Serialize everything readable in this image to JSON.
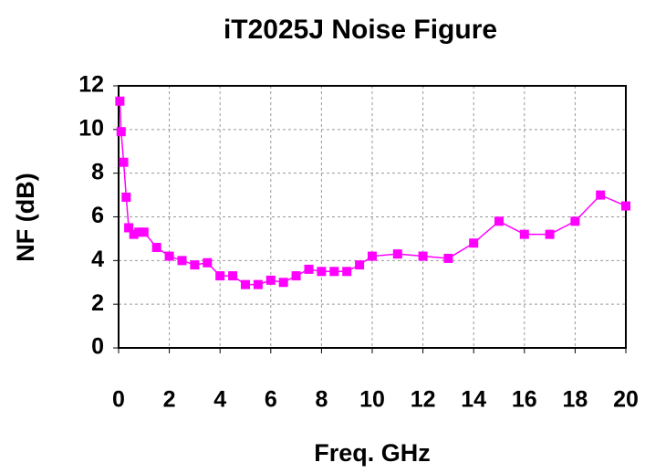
{
  "chart_data": {
    "type": "line",
    "title": "iT2025J Noise Figure",
    "x_label": "Freq. GHz",
    "y_label": "NF (dB)",
    "x": [
      0.05,
      0.1,
      0.2,
      0.3,
      0.4,
      0.6,
      0.8,
      1.0,
      1.5,
      2,
      2.5,
      3,
      3.5,
      4,
      4.5,
      5,
      5.5,
      6,
      6.5,
      7,
      7.5,
      8,
      8.5,
      9,
      9.5,
      10,
      11,
      12,
      13,
      14,
      15,
      16,
      17,
      18,
      19,
      20
    ],
    "series": [
      {
        "name": "NF",
        "color": "#ff00ff",
        "values": [
          11.3,
          9.9,
          8.5,
          6.9,
          5.5,
          5.2,
          5.3,
          5.3,
          4.6,
          4.2,
          4.0,
          3.8,
          3.9,
          3.3,
          3.3,
          2.9,
          2.9,
          3.1,
          3.0,
          3.3,
          3.6,
          3.5,
          3.5,
          3.5,
          3.8,
          4.2,
          4.3,
          4.2,
          4.1,
          4.8,
          5.8,
          5.2,
          5.2,
          5.8,
          7.0,
          6.5
        ]
      }
    ],
    "xlim": [
      0,
      20
    ],
    "xticks": [
      0,
      2,
      4,
      6,
      8,
      10,
      12,
      14,
      16,
      18,
      20
    ],
    "ylim": [
      0,
      12
    ],
    "yticks": [
      0,
      2,
      4,
      6,
      8,
      10,
      12
    ],
    "grid": true
  }
}
